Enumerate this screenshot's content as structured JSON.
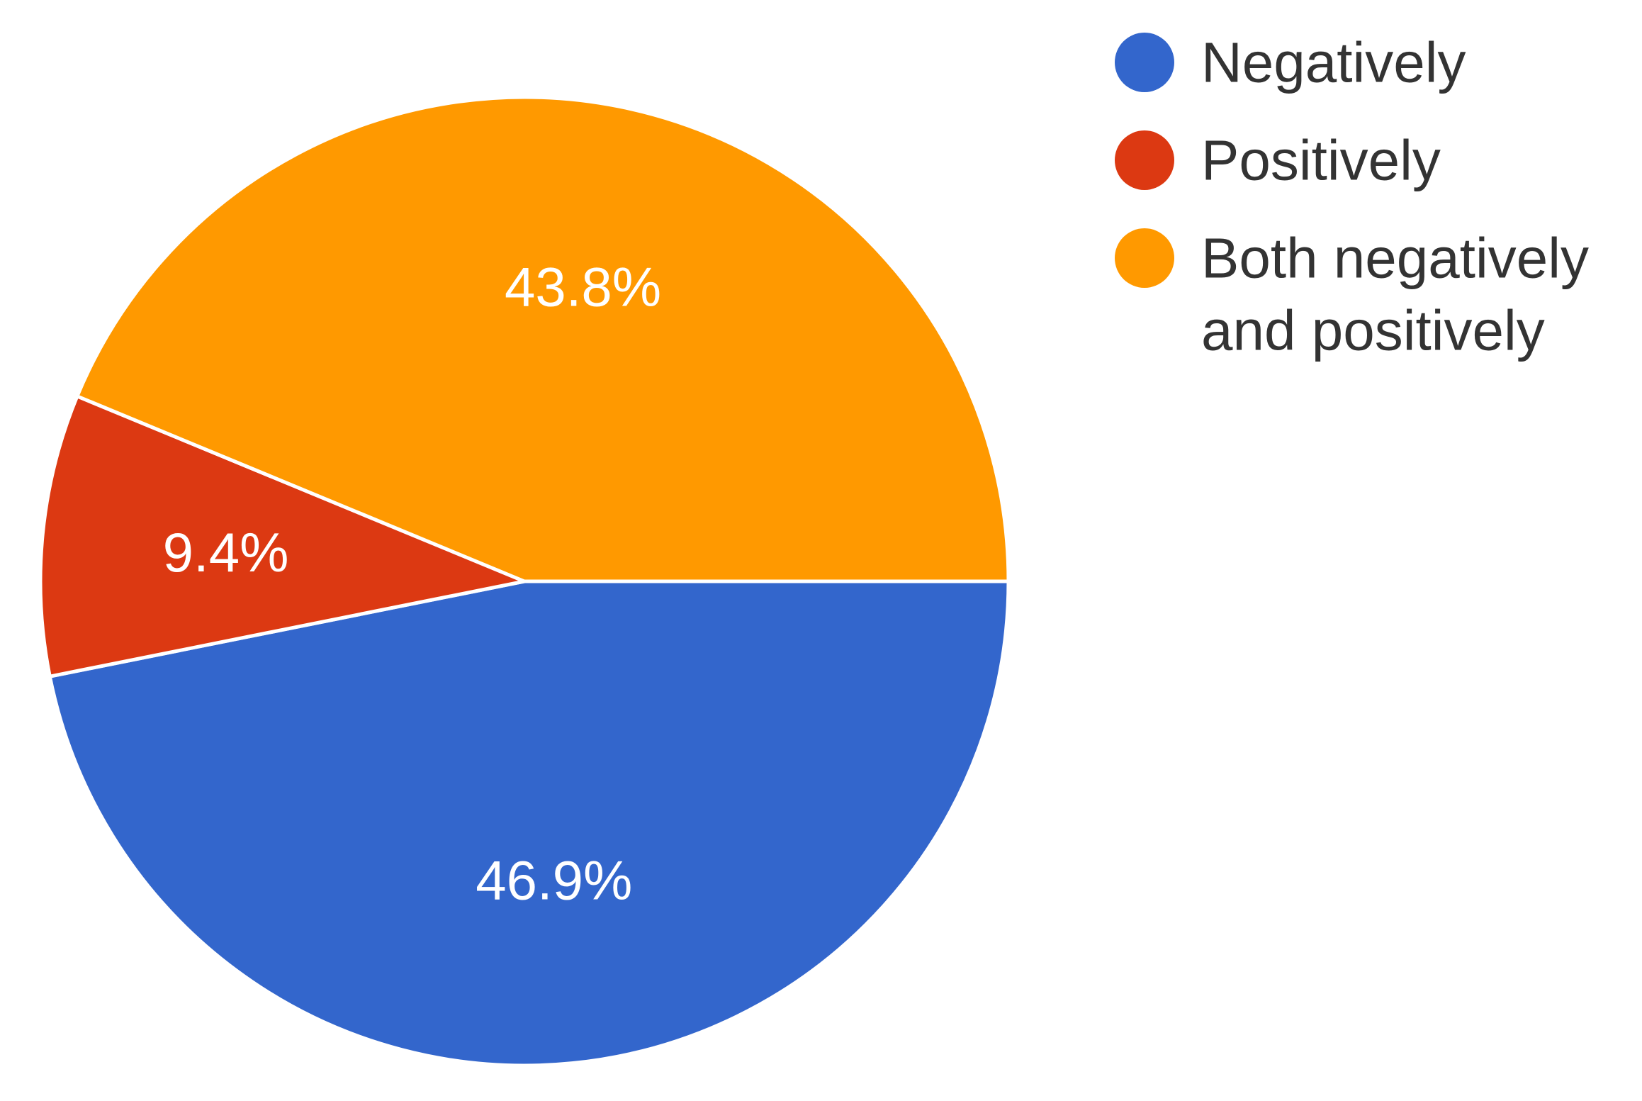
{
  "chart_data": {
    "type": "pie",
    "slices": [
      {
        "label": "Negatively",
        "value": 46.9,
        "display": "46.9%",
        "color": "#3366cc"
      },
      {
        "label": "Positively",
        "value": 9.4,
        "display": "9.4%",
        "color": "#dc3912"
      },
      {
        "label": "Both negatively and positively",
        "value": 43.8,
        "display": "43.8%",
        "color": "#ff9900"
      }
    ],
    "legend": {
      "placement": "top-right",
      "entries": [
        {
          "lines": [
            "Negatively"
          ],
          "color": "#3366cc"
        },
        {
          "lines": [
            "Positively"
          ],
          "color": "#dc3912"
        },
        {
          "lines": [
            "Both negatively",
            "and positively"
          ],
          "color": "#ff9900"
        }
      ]
    }
  }
}
